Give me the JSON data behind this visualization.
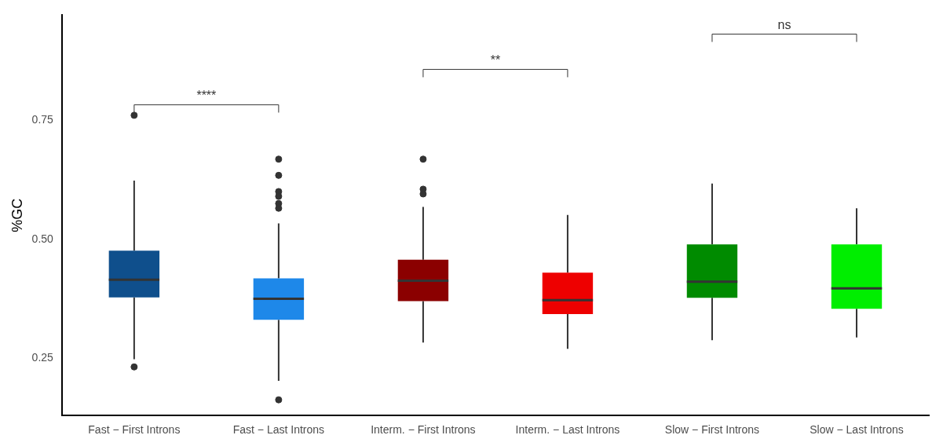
{
  "chart_data": {
    "type": "box",
    "ylabel": "%GC",
    "categories": [
      "Fast − First Introns",
      "Fast − Last Introns",
      "Interm. − First Introns",
      "Interm. − Last Introns",
      "Slow − First Introns",
      "Slow − Last Introns"
    ],
    "colors": [
      "#0f4f8c",
      "#1e88e9",
      "#8b0000",
      "#ee0000",
      "#008b00",
      "#00ee00"
    ],
    "boxes": [
      {
        "low": 0.248,
        "q1": 0.378,
        "median": 0.415,
        "q3": 0.476,
        "high": 0.623,
        "outliers": [
          0.76,
          0.232
        ]
      },
      {
        "low": 0.203,
        "q1": 0.331,
        "median": 0.375,
        "q3": 0.418,
        "high": 0.533,
        "outliers": [
          0.668,
          0.634,
          0.6,
          0.59,
          0.575,
          0.565,
          0.163
        ]
      },
      {
        "low": 0.283,
        "q1": 0.37,
        "median": 0.413,
        "q3": 0.457,
        "high": 0.568,
        "outliers": [
          0.668,
          0.605,
          0.595
        ]
      },
      {
        "low": 0.27,
        "q1": 0.343,
        "median": 0.372,
        "q3": 0.43,
        "high": 0.551
      },
      {
        "low": 0.288,
        "q1": 0.377,
        "median": 0.411,
        "q3": 0.489,
        "high": 0.617
      },
      {
        "low": 0.294,
        "q1": 0.354,
        "median": 0.397,
        "q3": 0.489,
        "high": 0.565
      }
    ],
    "annotations": [
      "****",
      "**",
      "ns"
    ],
    "ylim": [
      0.13,
      0.97
    ],
    "yticks": [
      0.25,
      {
        "value": 0.5,
        "label": "0.50"
      },
      0.75
    ],
    "grid": false,
    "legend": false
  }
}
